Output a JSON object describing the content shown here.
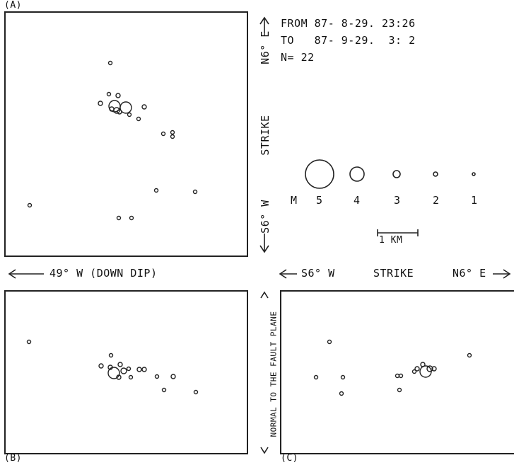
{
  "panel_labels": {
    "a": "(A)",
    "b": "(B)",
    "c": "(C)"
  },
  "info": {
    "from_line": "FROM 87- 8-29. 23:26",
    "to_line": "TO   87- 9-29.  3: 2",
    "n_line": "N= 22"
  },
  "axes": {
    "panel_a_right_top": "N6° E",
    "panel_a_right_mid": "STRIKE",
    "panel_a_right_bottom": "S6° W",
    "below_a": "49° W (DOWN DIP)",
    "below_c_left": "S6° W",
    "below_c_mid": "STRIKE",
    "below_c_right": "N6° E",
    "between_bc": "NORMAL TO THE FAULT PLANE"
  },
  "magnitude_scale": {
    "prefix": "M",
    "levels": [
      "5",
      "4",
      "3",
      "2",
      "1"
    ]
  },
  "scale_bar": {
    "label": "1 KM"
  },
  "chart_data": {
    "type": "scatter",
    "panels": [
      {
        "panel": "A",
        "points": [
          [
            0.26,
            0.82
          ],
          [
            0.45,
            0.8
          ],
          [
            0.49,
            0.8
          ],
          [
            0.32,
            0.37
          ],
          [
            0.41,
            0.36
          ],
          [
            0.51,
            0.35
          ],
          [
            0.55,
            0.35
          ]
        ]
      },
      {
        "panel": "B",
        "points": [
          [
            0.05,
            0.25
          ],
          [
            0.38,
            0.4
          ],
          [
            0.45,
            0.48
          ],
          [
            0.55,
            0.45
          ],
          [
            0.72,
            0.55
          ]
        ]
      },
      {
        "panel": "C",
        "points": [
          [
            0.18,
            0.27
          ],
          [
            0.25,
            0.55
          ],
          [
            0.25,
            0.65
          ],
          [
            0.51,
            0.5
          ],
          [
            0.55,
            0.45
          ],
          [
            0.84,
            0.32
          ]
        ]
      }
    ]
  }
}
